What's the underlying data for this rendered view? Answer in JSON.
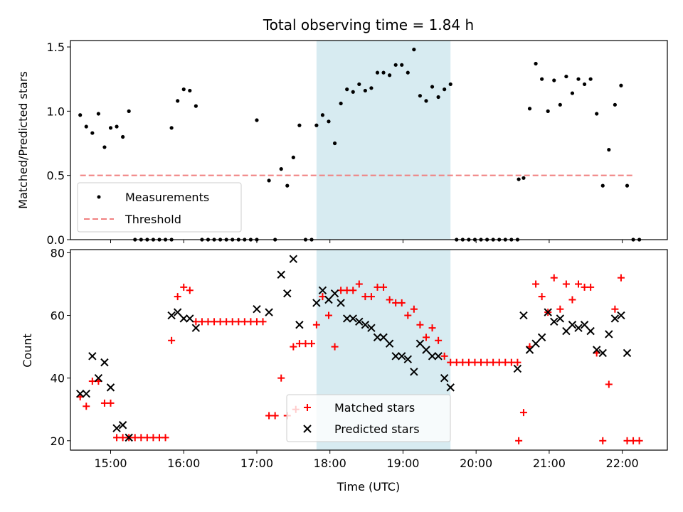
{
  "chart_data": [
    {
      "type": "scatter",
      "title": "Total observing time = 1.84 h",
      "xlabel": "",
      "ylabel": "Matched/Predicted stars",
      "xlim": [
        "14:27",
        "22:37"
      ],
      "ylim": [
        0,
        1.55
      ],
      "yticks": [
        "0.0",
        "0.5",
        "1.0",
        "1.5"
      ],
      "grid": false,
      "legend_position": "lower-left",
      "highlight_span": {
        "x_start": "17:49",
        "x_end": "19:39",
        "color": "#d5eaf0"
      },
      "series": [
        {
          "name": "Measurements",
          "marker": "dot",
          "color": "#000000",
          "points": [
            [
              "14:35",
              0.97
            ],
            [
              "14:40",
              0.88
            ],
            [
              "14:45",
              0.83
            ],
            [
              "14:50",
              0.98
            ],
            [
              "14:55",
              0.72
            ],
            [
              "15:00",
              0.87
            ],
            [
              "15:05",
              0.88
            ],
            [
              "15:10",
              0.8
            ],
            [
              "15:15",
              1.0
            ],
            [
              "15:20",
              0.0
            ],
            [
              "15:25",
              0.0
            ],
            [
              "15:30",
              0.0
            ],
            [
              "15:35",
              0.0
            ],
            [
              "15:40",
              0.0
            ],
            [
              "15:45",
              0.0
            ],
            [
              "15:50",
              0.0
            ],
            [
              "15:50",
              0.87
            ],
            [
              "15:55",
              1.08
            ],
            [
              "16:00",
              1.17
            ],
            [
              "16:05",
              1.16
            ],
            [
              "16:10",
              1.04
            ],
            [
              "16:15",
              0.0
            ],
            [
              "16:20",
              0.0
            ],
            [
              "16:25",
              0.0
            ],
            [
              "16:30",
              0.0
            ],
            [
              "16:35",
              0.0
            ],
            [
              "16:40",
              0.0
            ],
            [
              "16:45",
              0.0
            ],
            [
              "16:50",
              0.0
            ],
            [
              "16:55",
              0.0
            ],
            [
              "17:00",
              0.93
            ],
            [
              "17:00",
              0.0
            ],
            [
              "17:10",
              0.46
            ],
            [
              "17:15",
              0.0
            ],
            [
              "17:20",
              0.55
            ],
            [
              "17:25",
              0.42
            ],
            [
              "17:30",
              0.64
            ],
            [
              "17:35",
              0.89
            ],
            [
              "17:40",
              0.0
            ],
            [
              "17:45",
              0.0
            ],
            [
              "17:49",
              0.89
            ],
            [
              "17:54",
              0.97
            ],
            [
              "17:59",
              0.92
            ],
            [
              "18:04",
              0.75
            ],
            [
              "18:09",
              1.06
            ],
            [
              "18:14",
              1.17
            ],
            [
              "18:19",
              1.15
            ],
            [
              "18:24",
              1.21
            ],
            [
              "18:29",
              1.16
            ],
            [
              "18:34",
              1.18
            ],
            [
              "18:39",
              1.3
            ],
            [
              "18:44",
              1.3
            ],
            [
              "18:49",
              1.28
            ],
            [
              "18:54",
              1.36
            ],
            [
              "18:59",
              1.36
            ],
            [
              "19:04",
              1.3
            ],
            [
              "19:09",
              1.48
            ],
            [
              "19:14",
              1.12
            ],
            [
              "19:19",
              1.08
            ],
            [
              "19:24",
              1.19
            ],
            [
              "19:29",
              1.11
            ],
            [
              "19:34",
              1.17
            ],
            [
              "19:39",
              1.21
            ],
            [
              "19:44",
              0.0
            ],
            [
              "19:49",
              0.0
            ],
            [
              "19:54",
              0.0
            ],
            [
              "19:59",
              0.0
            ],
            [
              "20:04",
              0.0
            ],
            [
              "20:09",
              0.0
            ],
            [
              "20:14",
              0.0
            ],
            [
              "20:19",
              0.0
            ],
            [
              "20:24",
              0.0
            ],
            [
              "20:29",
              0.0
            ],
            [
              "20:34",
              0.0
            ],
            [
              "20:35",
              0.47
            ],
            [
              "20:39",
              0.48
            ],
            [
              "20:44",
              1.02
            ],
            [
              "20:49",
              1.37
            ],
            [
              "20:54",
              1.25
            ],
            [
              "20:59",
              1.0
            ],
            [
              "21:04",
              1.24
            ],
            [
              "21:09",
              1.05
            ],
            [
              "21:14",
              1.27
            ],
            [
              "21:19",
              1.14
            ],
            [
              "21:24",
              1.25
            ],
            [
              "21:29",
              1.21
            ],
            [
              "21:34",
              1.25
            ],
            [
              "21:39",
              0.98
            ],
            [
              "21:44",
              0.42
            ],
            [
              "21:49",
              0.7
            ],
            [
              "21:54",
              1.05
            ],
            [
              "21:59",
              1.2
            ],
            [
              "22:04",
              0.42
            ],
            [
              "22:09",
              0.0
            ],
            [
              "22:14",
              0.0
            ]
          ]
        },
        {
          "name": "Threshold",
          "marker": "dashed-line",
          "color": "#f08080",
          "points": [
            [
              "14:35",
              0.5
            ],
            [
              "22:10",
              0.5
            ]
          ]
        }
      ]
    },
    {
      "type": "scatter",
      "title": "",
      "xlabel": "Time (UTC)",
      "ylabel": "Count",
      "xlim": [
        "14:27",
        "22:37"
      ],
      "ylim": [
        17,
        81
      ],
      "yticks": [
        "20",
        "40",
        "60",
        "80"
      ],
      "xticks": [
        "15:00",
        "16:00",
        "17:00",
        "18:00",
        "19:00",
        "20:00",
        "21:00",
        "22:00"
      ],
      "grid": false,
      "legend_position": "lower-center",
      "highlight_span": {
        "x_start": "17:49",
        "x_end": "19:39",
        "color": "#d5eaf0"
      },
      "series": [
        {
          "name": "Matched stars",
          "marker": "plus",
          "color": "#ff0000",
          "points": [
            [
              "14:35",
              34
            ],
            [
              "14:40",
              31
            ],
            [
              "14:45",
              39
            ],
            [
              "14:50",
              39
            ],
            [
              "14:55",
              32
            ],
            [
              "15:00",
              32
            ],
            [
              "15:05",
              21
            ],
            [
              "15:10",
              21
            ],
            [
              "15:15",
              21
            ],
            [
              "15:20",
              21
            ],
            [
              "15:25",
              21
            ],
            [
              "15:30",
              21
            ],
            [
              "15:35",
              21
            ],
            [
              "15:40",
              21
            ],
            [
              "15:45",
              21
            ],
            [
              "15:50",
              52
            ],
            [
              "15:55",
              66
            ],
            [
              "16:00",
              69
            ],
            [
              "16:05",
              68
            ],
            [
              "16:10",
              58
            ],
            [
              "16:15",
              58
            ],
            [
              "16:20",
              58
            ],
            [
              "16:25",
              58
            ],
            [
              "16:30",
              58
            ],
            [
              "16:35",
              58
            ],
            [
              "16:40",
              58
            ],
            [
              "16:45",
              58
            ],
            [
              "16:50",
              58
            ],
            [
              "16:55",
              58
            ],
            [
              "17:00",
              58
            ],
            [
              "17:05",
              58
            ],
            [
              "17:10",
              28
            ],
            [
              "17:15",
              28
            ],
            [
              "17:20",
              40
            ],
            [
              "17:25",
              28
            ],
            [
              "17:30",
              50
            ],
            [
              "17:32",
              30
            ],
            [
              "17:35",
              51
            ],
            [
              "17:40",
              51
            ],
            [
              "17:45",
              51
            ],
            [
              "17:49",
              57
            ],
            [
              "17:54",
              66
            ],
            [
              "17:59",
              60
            ],
            [
              "18:04",
              50
            ],
            [
              "18:09",
              68
            ],
            [
              "18:14",
              68
            ],
            [
              "18:19",
              68
            ],
            [
              "18:24",
              70
            ],
            [
              "18:29",
              66
            ],
            [
              "18:34",
              66
            ],
            [
              "18:39",
              69
            ],
            [
              "18:44",
              69
            ],
            [
              "18:49",
              65
            ],
            [
              "18:54",
              64
            ],
            [
              "18:59",
              64
            ],
            [
              "19:04",
              60
            ],
            [
              "19:09",
              62
            ],
            [
              "19:14",
              57
            ],
            [
              "19:19",
              53
            ],
            [
              "19:24",
              56
            ],
            [
              "19:29",
              52
            ],
            [
              "19:34",
              47
            ],
            [
              "19:39",
              45
            ],
            [
              "19:44",
              45
            ],
            [
              "19:49",
              45
            ],
            [
              "19:54",
              45
            ],
            [
              "19:59",
              45
            ],
            [
              "20:04",
              45
            ],
            [
              "20:09",
              45
            ],
            [
              "20:14",
              45
            ],
            [
              "20:19",
              45
            ],
            [
              "20:24",
              45
            ],
            [
              "20:29",
              45
            ],
            [
              "20:34",
              45
            ],
            [
              "20:35",
              20
            ],
            [
              "20:39",
              29
            ],
            [
              "20:44",
              50
            ],
            [
              "20:49",
              70
            ],
            [
              "20:54",
              66
            ],
            [
              "20:59",
              61
            ],
            [
              "21:04",
              72
            ],
            [
              "21:09",
              62
            ],
            [
              "21:14",
              70
            ],
            [
              "21:19",
              65
            ],
            [
              "21:24",
              70
            ],
            [
              "21:29",
              69
            ],
            [
              "21:34",
              69
            ],
            [
              "21:39",
              48
            ],
            [
              "21:44",
              20
            ],
            [
              "21:49",
              38
            ],
            [
              "21:54",
              62
            ],
            [
              "21:59",
              72
            ],
            [
              "22:04",
              20
            ],
            [
              "22:09",
              20
            ],
            [
              "22:14",
              20
            ]
          ]
        },
        {
          "name": "Predicted stars",
          "marker": "x",
          "color": "#000000",
          "points": [
            [
              "14:35",
              35
            ],
            [
              "14:40",
              35
            ],
            [
              "14:45",
              47
            ],
            [
              "14:50",
              40
            ],
            [
              "14:55",
              45
            ],
            [
              "15:00",
              37
            ],
            [
              "15:05",
              24
            ],
            [
              "15:10",
              25
            ],
            [
              "15:15",
              21
            ],
            [
              "15:50",
              60
            ],
            [
              "15:55",
              61
            ],
            [
              "16:00",
              59
            ],
            [
              "16:05",
              59
            ],
            [
              "16:10",
              56
            ],
            [
              "17:00",
              62
            ],
            [
              "17:10",
              61
            ],
            [
              "17:20",
              73
            ],
            [
              "17:25",
              67
            ],
            [
              "17:30",
              78
            ],
            [
              "17:35",
              57
            ],
            [
              "17:49",
              64
            ],
            [
              "17:54",
              68
            ],
            [
              "17:59",
              65
            ],
            [
              "18:04",
              67
            ],
            [
              "18:09",
              64
            ],
            [
              "18:14",
              59
            ],
            [
              "18:19",
              59
            ],
            [
              "18:24",
              58
            ],
            [
              "18:29",
              57
            ],
            [
              "18:34",
              56
            ],
            [
              "18:39",
              53
            ],
            [
              "18:44",
              53
            ],
            [
              "18:49",
              51
            ],
            [
              "18:54",
              47
            ],
            [
              "18:59",
              47
            ],
            [
              "19:04",
              46
            ],
            [
              "19:09",
              42
            ],
            [
              "19:14",
              51
            ],
            [
              "19:19",
              49
            ],
            [
              "19:24",
              47
            ],
            [
              "19:29",
              47
            ],
            [
              "19:34",
              40
            ],
            [
              "19:39",
              37
            ],
            [
              "20:34",
              43
            ],
            [
              "20:39",
              60
            ],
            [
              "20:44",
              49
            ],
            [
              "20:49",
              51
            ],
            [
              "20:54",
              53
            ],
            [
              "20:59",
              61
            ],
            [
              "21:04",
              58
            ],
            [
              "21:09",
              59
            ],
            [
              "21:14",
              55
            ],
            [
              "21:19",
              57
            ],
            [
              "21:24",
              56
            ],
            [
              "21:29",
              57
            ],
            [
              "21:34",
              55
            ],
            [
              "21:39",
              49
            ],
            [
              "21:44",
              48
            ],
            [
              "21:49",
              54
            ],
            [
              "21:54",
              59
            ],
            [
              "21:59",
              60
            ],
            [
              "22:04",
              48
            ]
          ]
        }
      ]
    }
  ]
}
